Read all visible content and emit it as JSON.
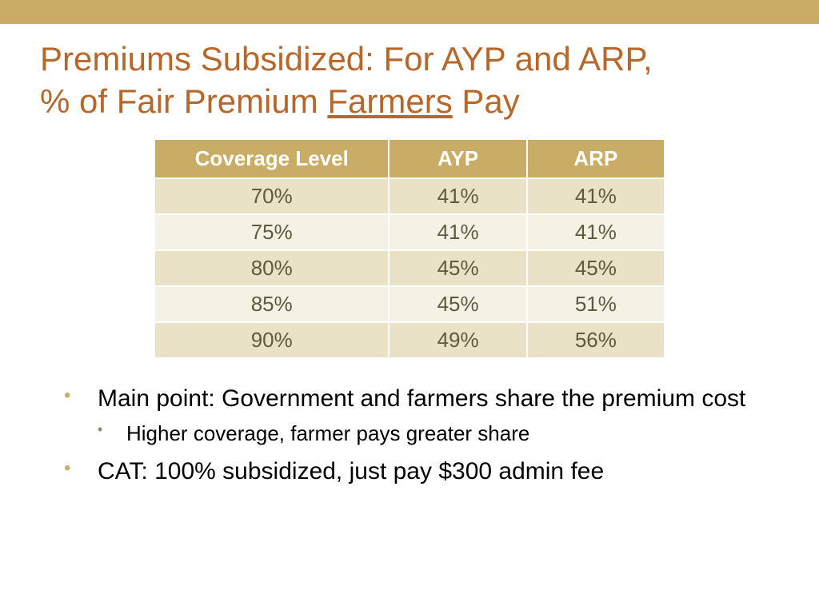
{
  "colors": {
    "accent_bar": "#c9ad66",
    "title_text": "#b8672a",
    "table_header_bg": "#c9ad66",
    "table_header_text": "#ffffff",
    "row_odd_bg": "#e9e2c7",
    "row_even_bg": "#f5f1e4",
    "cell_text": "#5f5a3f",
    "bullet_marker": "#c9ad66",
    "sub_bullet_marker": "#8a8a7a",
    "body_text": "#000000"
  },
  "title": {
    "line1": "Premiums Subsidized: For AYP and ARP,",
    "line2_pre": "% of Fair Premium ",
    "line2_underlined": "Farmers",
    "line2_post": " Pay",
    "fontsize": 42
  },
  "table": {
    "columns": [
      "Coverage Level",
      "AYP",
      "ARP"
    ],
    "rows": [
      [
        "70%",
        "41%",
        "41%"
      ],
      [
        "75%",
        "41%",
        "41%"
      ],
      [
        "80%",
        "45%",
        "45%"
      ],
      [
        "85%",
        "45%",
        "51%"
      ],
      [
        "90%",
        "49%",
        "56%"
      ]
    ],
    "header_fontsize": 26,
    "cell_fontsize": 26
  },
  "bullets": {
    "items": [
      {
        "text": "Main point: Government and farmers share the premium cost",
        "sub": [
          {
            "text": "Higher coverage, farmer pays greater share"
          }
        ]
      },
      {
        "text": "CAT: 100% subsidized, just pay $300 admin fee",
        "sub": []
      }
    ],
    "fontsize": 30,
    "sub_fontsize": 26
  }
}
